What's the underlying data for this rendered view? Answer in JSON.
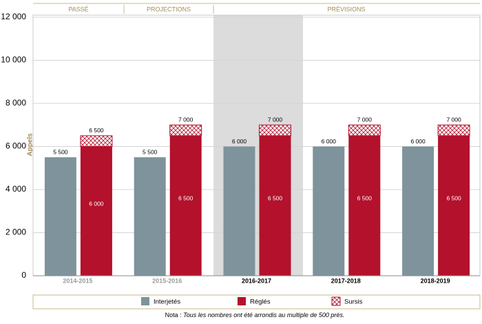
{
  "chart_data": {
    "type": "bar",
    "y_label": "Appels",
    "periods": [
      "PASSÉ",
      "PROJECTIONS",
      "PRÉVISIONS"
    ],
    "categories": [
      "2014-2015",
      "2015-2016",
      "2016-2017",
      "2017-2018",
      "2018-2019"
    ],
    "category_colors": [
      "#9a9a9a",
      "#9a9a9a",
      "#000000",
      "#000000",
      "#000000"
    ],
    "series": [
      {
        "name": "Interjetés",
        "color": "#7e939b",
        "values": [
          5500,
          5500,
          6000,
          6000,
          6000
        ],
        "value_labels": [
          "5 500",
          "5 500",
          "6 000",
          "6 000",
          "6 000"
        ]
      },
      {
        "name": "Réglés",
        "color": "#b3112c",
        "values": [
          6000,
          6500,
          6500,
          6500,
          6500
        ],
        "value_labels": [
          "6 000",
          "6 500",
          "6 500",
          "6 500",
          "6 500"
        ]
      },
      {
        "name": "Sursis",
        "color": "#b3112c",
        "hatch": true,
        "stacked_on": "Réglés",
        "values": [
          500,
          500,
          500,
          500,
          500
        ]
      }
    ],
    "total_labels": [
      "6 500",
      "7 000",
      "7 000",
      "7 000",
      "7 000"
    ],
    "ylim": [
      0,
      12000
    ],
    "yticks": [
      0,
      {
        "value": 2000,
        "label": "2 000"
      },
      {
        "value": 4000,
        "label": "4 000"
      },
      {
        "value": 6000,
        "label": "6 000"
      },
      {
        "value": 8000,
        "label": "8 000"
      },
      {
        "value": 10000,
        "label": "10 000"
      },
      {
        "value": 12000,
        "label": "12 000"
      }
    ],
    "grid": true,
    "note_label": "Nota : ",
    "note_text": "Tous les nombres ont été arrondis au multiple de 500 près."
  }
}
